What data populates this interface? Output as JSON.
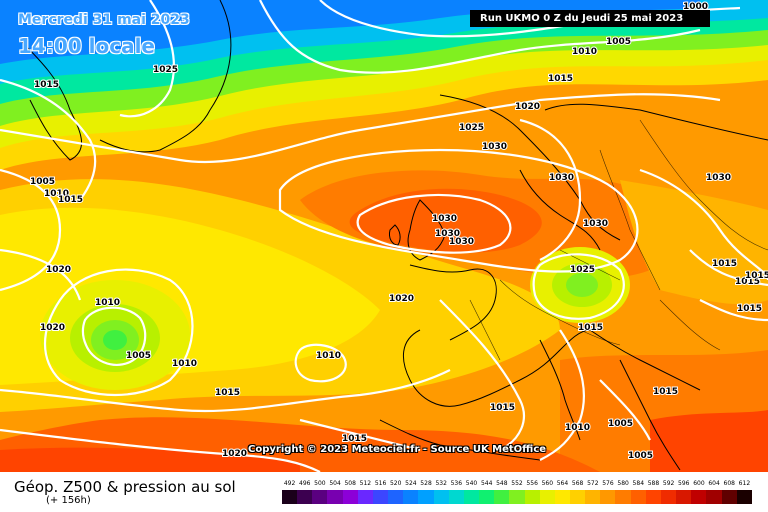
{
  "header": {
    "date_label": "Mercredi 31 mai 2023",
    "hour_label": "14:00 locale",
    "run_label": "Run UKMO 0 Z du Jeudi 25 mai 2023"
  },
  "copyright": "Copyright © 2023 Meteociel.fr - Source UK MetOffice",
  "footer": {
    "title": "Géop. Z500 & pression au sol",
    "subtitle": "(+ 156h)"
  },
  "isobar_labels": [
    {
      "text": "1000"
    },
    {
      "text": "1005"
    },
    {
      "text": "1010"
    },
    {
      "text": "1015"
    },
    {
      "text": "1025"
    },
    {
      "text": "1015"
    },
    {
      "text": "1020"
    },
    {
      "text": "1025"
    },
    {
      "text": "1030"
    },
    {
      "text": "1030"
    },
    {
      "text": "1030"
    },
    {
      "text": "1030"
    },
    {
      "text": "1030"
    },
    {
      "text": "1030"
    },
    {
      "text": "1030"
    },
    {
      "text": "1005"
    },
    {
      "text": "1010"
    },
    {
      "text": "1015"
    },
    {
      "text": "1020"
    },
    {
      "text": "1010"
    },
    {
      "text": "1020"
    },
    {
      "text": "1005"
    },
    {
      "text": "1010"
    },
    {
      "text": "1020"
    },
    {
      "text": "1010"
    },
    {
      "text": "1015"
    },
    {
      "text": "1025"
    },
    {
      "text": "1015"
    },
    {
      "text": "1015"
    },
    {
      "text": "1015"
    },
    {
      "text": "1015"
    },
    {
      "text": "1015"
    },
    {
      "text": "1010"
    },
    {
      "text": "1005"
    },
    {
      "text": "1005"
    },
    {
      "text": "1015"
    },
    {
      "text": "1020"
    },
    {
      "text": "1015"
    },
    {
      "text": "1015"
    }
  ],
  "legend": {
    "values": [
      "492",
      "496",
      "500",
      "504",
      "508",
      "512",
      "516",
      "520",
      "524",
      "528",
      "532",
      "536",
      "540",
      "544",
      "548",
      "552",
      "556",
      "560",
      "564",
      "568",
      "572",
      "576",
      "580",
      "584",
      "588",
      "592",
      "596",
      "600",
      "604",
      "608",
      "612"
    ],
    "colors": [
      "#1a001a",
      "#3c0050",
      "#5a0080",
      "#7800b0",
      "#8c00d8",
      "#6a28ff",
      "#3c46ff",
      "#1e64ff",
      "#0a82ff",
      "#00a0ff",
      "#00c0f0",
      "#00d8d0",
      "#00e8a0",
      "#10f070",
      "#40f040",
      "#80f020",
      "#b8f000",
      "#e8f000",
      "#ffe800",
      "#ffd000",
      "#ffb400",
      "#ff9800",
      "#ff7c00",
      "#ff6000",
      "#ff4400",
      "#f02c00",
      "#d81800",
      "#c00000",
      "#a00000",
      "#600000",
      "#1a0000"
    ]
  }
}
